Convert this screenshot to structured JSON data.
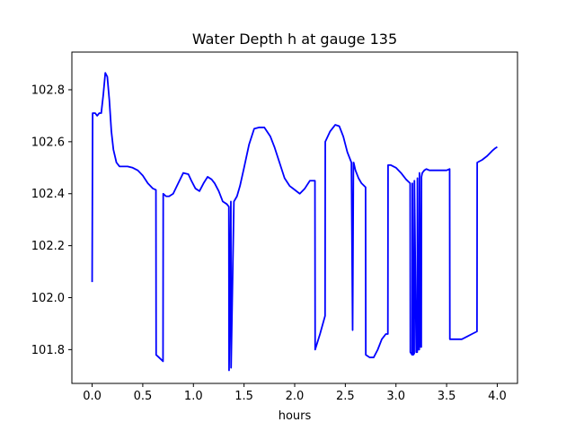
{
  "chart_data": {
    "type": "line",
    "title": "Water Depth h at gauge 135",
    "xlabel": "hours",
    "ylabel": "",
    "xlim": [
      -0.2,
      4.2
    ],
    "ylim": [
      101.67,
      102.945
    ],
    "xticks": [
      0.0,
      0.5,
      1.0,
      1.5,
      2.0,
      2.5,
      3.0,
      3.5,
      4.0
    ],
    "xtick_labels": [
      "0.0",
      "0.5",
      "1.0",
      "1.5",
      "2.0",
      "2.5",
      "3.0",
      "3.5",
      "4.0"
    ],
    "yticks": [
      101.8,
      102.0,
      102.2,
      102.4,
      102.6,
      102.8
    ],
    "ytick_labels": [
      "101.8",
      "102.0",
      "102.2",
      "102.4",
      "102.6",
      "102.8"
    ],
    "grid": false,
    "series": [
      {
        "color": "#0000ff",
        "x": [
          0.0,
          0.005,
          0.03,
          0.05,
          0.07,
          0.09,
          0.11,
          0.13,
          0.15,
          0.17,
          0.19,
          0.21,
          0.24,
          0.27,
          0.3,
          0.35,
          0.4,
          0.45,
          0.5,
          0.55,
          0.6,
          0.63,
          0.632,
          0.66,
          0.7,
          0.702,
          0.73,
          0.76,
          0.8,
          0.85,
          0.9,
          0.95,
          0.98,
          1.02,
          1.06,
          1.1,
          1.14,
          1.18,
          1.21,
          1.25,
          1.29,
          1.33,
          1.35,
          1.352,
          1.37,
          1.372,
          1.4,
          1.43,
          1.46,
          1.5,
          1.55,
          1.6,
          1.65,
          1.7,
          1.76,
          1.8,
          1.85,
          1.9,
          1.95,
          2.0,
          2.05,
          2.1,
          2.15,
          2.2,
          2.202,
          2.25,
          2.3,
          2.302,
          2.35,
          2.4,
          2.44,
          2.48,
          2.52,
          2.56,
          2.572,
          2.58,
          2.582,
          2.6,
          2.63,
          2.66,
          2.7,
          2.702,
          2.74,
          2.78,
          2.82,
          2.86,
          2.9,
          2.92,
          2.922,
          2.95,
          3.0,
          3.05,
          3.1,
          3.14,
          3.142,
          3.16,
          3.162,
          3.17,
          3.18,
          3.182,
          3.2,
          3.21,
          3.212,
          3.22,
          3.23,
          3.232,
          3.245,
          3.25,
          3.252,
          3.26,
          3.28,
          3.3,
          3.33,
          3.36,
          3.4,
          3.45,
          3.5,
          3.53,
          3.532,
          3.6,
          3.65,
          3.7,
          3.75,
          3.8,
          3.802,
          3.85,
          3.9,
          3.95,
          3.98,
          4.0
        ],
        "y": [
          102.06,
          102.71,
          102.71,
          102.7,
          102.71,
          102.71,
          102.78,
          102.865,
          102.85,
          102.76,
          102.64,
          102.57,
          102.52,
          102.505,
          102.505,
          102.505,
          102.5,
          102.49,
          102.47,
          102.44,
          102.42,
          102.415,
          101.78,
          101.77,
          101.755,
          102.4,
          102.39,
          102.39,
          102.4,
          102.44,
          102.48,
          102.475,
          102.45,
          102.42,
          102.41,
          102.44,
          102.465,
          102.455,
          102.44,
          102.41,
          102.37,
          102.36,
          102.35,
          101.72,
          102.37,
          101.73,
          102.37,
          102.39,
          102.43,
          102.5,
          102.59,
          102.65,
          102.655,
          102.655,
          102.62,
          102.58,
          102.52,
          102.46,
          102.43,
          102.415,
          102.4,
          102.42,
          102.45,
          102.45,
          101.8,
          101.86,
          101.93,
          102.6,
          102.64,
          102.665,
          102.66,
          102.62,
          102.56,
          102.52,
          101.875,
          102.52,
          102.52,
          102.49,
          102.46,
          102.44,
          102.425,
          101.78,
          101.77,
          101.77,
          101.8,
          101.84,
          101.86,
          101.86,
          102.51,
          102.51,
          102.5,
          102.48,
          102.455,
          102.44,
          101.79,
          101.78,
          102.44,
          101.78,
          101.785,
          102.45,
          101.79,
          101.79,
          102.46,
          101.8,
          101.8,
          102.48,
          101.81,
          101.81,
          102.465,
          102.48,
          102.49,
          102.495,
          102.49,
          102.49,
          102.49,
          102.49,
          102.49,
          102.495,
          101.84,
          101.84,
          101.84,
          101.85,
          101.86,
          101.87,
          102.52,
          102.53,
          102.545,
          102.565,
          102.575,
          102.58
        ]
      }
    ]
  }
}
